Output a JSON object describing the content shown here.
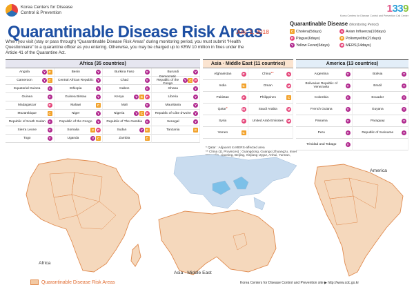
{
  "header": {
    "org_line1": "Korea Centers for Disease",
    "org_line2": "Control & Prevention",
    "hotline": [
      "1",
      "33",
      "9"
    ],
    "hotline_sub": "Korea Centers for Disease Control and Prevention Call Center"
  },
  "title": "Quarantinable Disease Risk Areas",
  "date": "July. 1, 2018",
  "intro": "When you visit (stay or pass through) “Quarantinable Disease Risk Areas” during monitoring period, you must submit “Health Questionnaire” to a quarantine officer as you entering. Otherwise, you may be charged up to KRW 10 million in fines under the Article 41 of the Quarantine Act.",
  "legend": {
    "title": "Quarantinable Disease",
    "subtitle": "(Monitoring Period)",
    "items": [
      {
        "code": "C",
        "cls": "b-C",
        "label": "Cholera(5days)"
      },
      {
        "code": "A",
        "cls": "b-A",
        "label": "Avian Influenza(10days)"
      },
      {
        "code": "P",
        "cls": "b-P",
        "label": "Plague(6days)"
      },
      {
        "code": "P",
        "cls": "b-Po",
        "label": "Poliomyelitis(21days)"
      },
      {
        "code": "Y",
        "cls": "b-Y",
        "label": "Yellow Fever(6days)"
      },
      {
        "code": "M",
        "cls": "b-M",
        "label": "MERS(14days)"
      }
    ]
  },
  "africa": {
    "title": "Africa (35 countries)",
    "countries": [
      {
        "name": "Angola",
        "b": [
          "Y",
          "C"
        ]
      },
      {
        "name": "Benin",
        "b": [
          "Y"
        ]
      },
      {
        "name": "Burkina Faso",
        "b": [
          "Y"
        ]
      },
      {
        "name": "Burundi",
        "b": [
          "Y"
        ]
      },
      {
        "name": "Cameroon",
        "b": [
          "Y",
          "C"
        ]
      },
      {
        "name": "Central African Republic",
        "b": [
          "Y"
        ]
      },
      {
        "name": "Chad",
        "b": [
          "Y"
        ]
      },
      {
        "name": "Democratic Republic of the Congo",
        "b": [
          "Y",
          "C",
          "P"
        ]
      },
      {
        "name": "Equatorial Guinea",
        "b": [
          "Y"
        ]
      },
      {
        "name": "Ethiopia",
        "b": [
          "Y"
        ]
      },
      {
        "name": "Gabon",
        "b": [
          "Y"
        ]
      },
      {
        "name": "Ghana",
        "b": [
          "Y"
        ]
      },
      {
        "name": "Guinea",
        "b": [
          "Y"
        ]
      },
      {
        "name": "Guinea Bissau",
        "b": [
          "Y"
        ]
      },
      {
        "name": "Kenya",
        "b": [
          "Y",
          "C",
          "P"
        ]
      },
      {
        "name": "Liberia",
        "b": [
          "Y"
        ]
      },
      {
        "name": "Madagascar",
        "b": [
          "P"
        ]
      },
      {
        "name": "Malawi",
        "b": [
          "C"
        ]
      },
      {
        "name": "Mali",
        "b": [
          "Y"
        ]
      },
      {
        "name": "Mauritania",
        "b": [
          "Y"
        ]
      },
      {
        "name": "Mozambique",
        "b": [
          "C"
        ]
      },
      {
        "name": "Niger",
        "b": [
          "Y"
        ]
      },
      {
        "name": "Nigeria",
        "b": [
          "Y",
          "C",
          "P"
        ]
      },
      {
        "name": "Republic of Côte d'Ivoire",
        "b": [
          "Y"
        ]
      },
      {
        "name": "Republic of South Sudan",
        "b": [
          "Y"
        ]
      },
      {
        "name": "Republic of the Congo",
        "b": [
          "Y"
        ]
      },
      {
        "name": "Republic of The Gambia",
        "b": [
          "Y"
        ]
      },
      {
        "name": "Senegal",
        "b": [
          "Y"
        ]
      },
      {
        "name": "Sierra Leone",
        "b": [
          "Y"
        ]
      },
      {
        "name": "Somalia",
        "b": [
          "C",
          "P"
        ]
      },
      {
        "name": "Sudan",
        "b": [
          "Y",
          "C"
        ]
      },
      {
        "name": "Tanzania",
        "b": [
          "C"
        ]
      },
      {
        "name": "Togo",
        "b": [
          "Y"
        ]
      },
      {
        "name": "Uganda",
        "b": [
          "Y",
          "C"
        ]
      },
      {
        "name": "Zambia",
        "b": [
          "C"
        ]
      },
      {
        "name": "",
        "b": []
      }
    ]
  },
  "asia": {
    "title": "Asia · Middle East (11 countries)",
    "countries": [
      {
        "name": "Afghanistan",
        "b": [
          "P"
        ],
        "star": ""
      },
      {
        "name": "China",
        "b": [
          "A"
        ],
        "star": "**"
      },
      {
        "name": "India",
        "b": [
          "C"
        ],
        "star": ""
      },
      {
        "name": "Oman",
        "b": [
          "M"
        ],
        "star": ""
      },
      {
        "name": "Pakistan",
        "b": [
          "P"
        ],
        "star": ""
      },
      {
        "name": "Philippines",
        "b": [
          "C"
        ],
        "star": ""
      },
      {
        "name": "Qatar",
        "b": [
          "M"
        ],
        "star": "*"
      },
      {
        "name": "Saudi Arabia",
        "b": [
          "M"
        ],
        "star": ""
      },
      {
        "name": "Syria",
        "b": [
          "P"
        ],
        "star": ""
      },
      {
        "name": "United Arab Emirates",
        "b": [
          "M"
        ],
        "star": ""
      },
      {
        "name": "Yemen",
        "b": [
          "C"
        ],
        "star": ""
      },
      {
        "name": "",
        "b": [],
        "star": ""
      }
    ]
  },
  "america": {
    "title": "America (13 countries)",
    "countries": [
      {
        "name": "Argentina",
        "b": [
          "Y"
        ]
      },
      {
        "name": "Bolivia",
        "b": [
          "Y"
        ]
      },
      {
        "name": "Bolivarian Republic of Venezuela",
        "b": [
          "Y"
        ]
      },
      {
        "name": "Brazil",
        "b": [
          "Y"
        ]
      },
      {
        "name": "Colombia",
        "b": [
          "Y"
        ]
      },
      {
        "name": "Ecuador",
        "b": [
          "Y"
        ]
      },
      {
        "name": "French Guiana",
        "b": [
          "Y"
        ]
      },
      {
        "name": "Guyana",
        "b": [
          "Y"
        ]
      },
      {
        "name": "Panama",
        "b": [
          "Y"
        ]
      },
      {
        "name": "Paraguay",
        "b": [
          "Y"
        ]
      },
      {
        "name": "Peru",
        "b": [
          "Y"
        ]
      },
      {
        "name": "Republic of Suriname",
        "b": [
          "Y"
        ]
      },
      {
        "name": "Trinidad and Tobago",
        "b": [
          "Y"
        ]
      },
      {
        "name": "",
        "b": []
      }
    ]
  },
  "notes": [
    "* Qatar : Adjacent to MERS-affected area",
    "** China (11 Provinces) : Guangdong, Guangxi Zhuangzu, Inner Mongolia, Liaoning, Beijing, Xinjiang Uygur, Anhui, Yunnan, Jiangsu, Fujian, Jiangxi"
  ],
  "maps": {
    "africa_label": "Africa",
    "asia_label": "Asia · Middle East",
    "america_label": "America"
  },
  "footer": {
    "legend_label": "Quarantinable Disease Risk Areas",
    "source": "Korea Centers for Disease Control and Prevention site ▶ http://www.cdc.go.kr"
  }
}
